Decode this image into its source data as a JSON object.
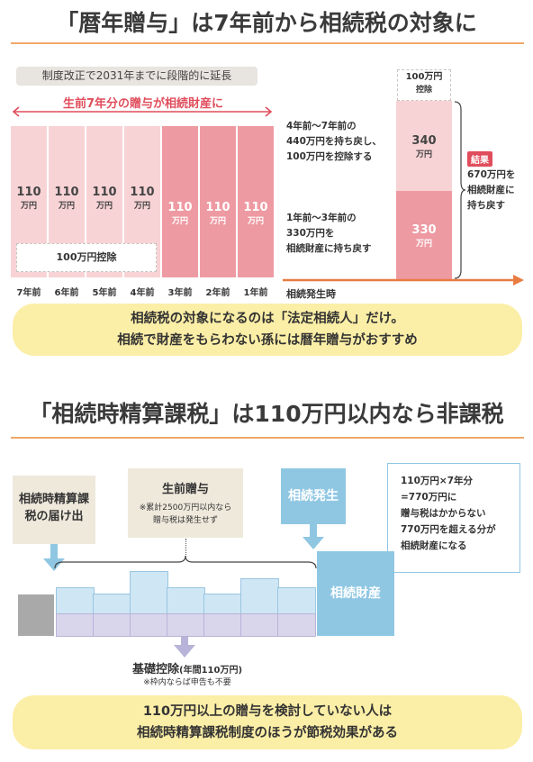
{
  "section1": {
    "title": "「暦年贈与」は7年前から相続税の対象に",
    "badge": "制度改正で2031年までに段階的に延長",
    "arrow_label": "生前7年分の贈与が相続財産に",
    "bars": [
      {
        "value": "110",
        "unit": "万円",
        "year": "7年前"
      },
      {
        "value": "110",
        "unit": "万円",
        "year": "6年前"
      },
      {
        "value": "110",
        "unit": "万円",
        "year": "5年前"
      },
      {
        "value": "110",
        "unit": "万円",
        "year": "4年前"
      },
      {
        "value": "110",
        "unit": "万円",
        "year": "3年前"
      },
      {
        "value": "110",
        "unit": "万円",
        "year": "2年前"
      },
      {
        "value": "110",
        "unit": "万円",
        "year": "1年前"
      }
    ],
    "deduction_label": "100万円控除",
    "note_upper": [
      "4年前〜7年前の",
      "440万円を持ち戻し、",
      "100万円を控除する"
    ],
    "note_lower": [
      "1年前〜3年前の",
      "330万円を",
      "相続財産に持ち戻す"
    ],
    "stack_top": {
      "value": "100万円",
      "sub": "控除"
    },
    "stack_mid": {
      "value": "340",
      "unit": "万円"
    },
    "stack_low": {
      "value": "330",
      "unit": "万円"
    },
    "result_tag": "結果",
    "result_lines": [
      "670万円を",
      "相続財産に",
      "持ち戻す"
    ],
    "timeline_label": "相続発生時",
    "callout": [
      "相続税の対象になるのは「法定相続人」だけ。",
      "相続で財産をもらわない孫には暦年贈与がおすすめ"
    ]
  },
  "section2": {
    "title": "「相続時精算課税」は110万円以内なら非課税",
    "filing_box": [
      "相続時精算課",
      "税の届け出"
    ],
    "gift_box_title": "生前贈与",
    "gift_box_notes": [
      "※累計2500万円以内なら",
      "贈与税は発生せず"
    ],
    "inherit_event": "相続発生",
    "inherit_assets": "相続財産",
    "info_box": [
      "110万円×7年分",
      "=770万円に",
      "贈与税はかからない",
      "770万円を超える分が",
      "相続財産になる"
    ],
    "basic_deduction": "基礎控除",
    "basic_deduction_paren": "(年間110万円)",
    "basic_deduction_note": "※枠内ならば申告も不要",
    "callout": [
      "110万円以上の贈与を検討していない人は",
      "相続時精算課税制度のほうが節税効果がある"
    ]
  },
  "colors": {
    "accent_orange": "#f0a868",
    "light_pink": "#f8d3d6",
    "dark_pink": "#ee9aa2",
    "red": "#e04d5c",
    "callout_yellow": "#fbeea6",
    "blue": "#8fc7e3"
  }
}
